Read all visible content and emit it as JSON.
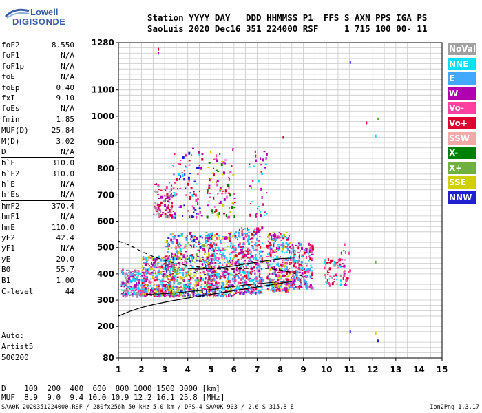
{
  "logo": {
    "line1": "Lowell",
    "line2": "DIGISONDE"
  },
  "header": {
    "labels": [
      "Station",
      "YYYY",
      "DAY",
      "DDD",
      "HHMMSS",
      "P1",
      "FFS",
      "S",
      "AXN",
      "PPS",
      "IGA",
      "PS"
    ],
    "line1": "Station YYYY DAY   DDD HHMMSS P1  FFS S AXN PPS IGA PS",
    "line2": "SaoLuis 2020 Dec16 351 224000 RSF     1 715 100 00- 11"
  },
  "params": [
    {
      "label": "foF2",
      "value": "8.550"
    },
    {
      "label": "foF1",
      "value": "N/A"
    },
    {
      "label": "foF1p",
      "value": "N/A"
    },
    {
      "label": "foE",
      "value": "N/A"
    },
    {
      "label": "foEp",
      "value": "0.40"
    },
    {
      "label": "fxI",
      "value": "9.10"
    },
    {
      "label": "foEs",
      "value": "N/A"
    },
    {
      "label": "fmin",
      "value": "1.85"
    },
    {
      "label": "MUF(D)",
      "value": "25.84"
    },
    {
      "label": "M(D)",
      "value": "3.02"
    },
    {
      "label": "D",
      "value": "N/A"
    },
    {
      "label": "h`F",
      "value": "310.0"
    },
    {
      "label": "h`F2",
      "value": "310.0"
    },
    {
      "label": "h`E",
      "value": "N/A"
    },
    {
      "label": "h`Es",
      "value": "N/A"
    },
    {
      "label": "hmF2",
      "value": "370.4"
    },
    {
      "label": "hmF1",
      "value": "N/A"
    },
    {
      "label": "hmE",
      "value": "110.0"
    },
    {
      "label": "yF2",
      "value": "42.4"
    },
    {
      "label": "yF1",
      "value": "N/A"
    },
    {
      "label": "yE",
      "value": "20.0"
    },
    {
      "label": "B0",
      "value": "55.7"
    },
    {
      "label": "B1",
      "value": "1.00"
    },
    {
      "label": "C-level",
      "value": "44"
    }
  ],
  "auto": {
    "line1": "Auto:",
    "line2": "Artist5",
    "line3": "500200"
  },
  "legend": [
    {
      "label": "NoVal",
      "color": "#a0a0a0"
    },
    {
      "label": "NNE",
      "color": "#00e0ff"
    },
    {
      "label": "E",
      "color": "#40a8ff"
    },
    {
      "label": "W",
      "color": "#b000b0"
    },
    {
      "label": "Vo-",
      "color": "#ff40a0"
    },
    {
      "label": "Vo+",
      "color": "#e00030"
    },
    {
      "label": "SSW",
      "color": "#f4a8a8"
    },
    {
      "label": "X-",
      "color": "#008000"
    },
    {
      "label": "X+",
      "color": "#70b040"
    },
    {
      "label": "SSE",
      "color": "#d0d000"
    },
    {
      "label": "NNW",
      "color": "#2020d0"
    }
  ],
  "bottom": {
    "d_line": "D    100  200  400  600  800 1000 1500 3000 [km]",
    "muf_line": "MUF  8.9  9.0  9.4 10.0 10.9 12.2 16.1 25.8 [MHz]"
  },
  "footer": "SAA0K_2020351224000.RSF / 280fx256h 50 kHz 5.0 km / DPS-4 SAA0K 903 / 2.6 S 315.8 E",
  "version": "Ion2Png 1.3.17",
  "chart_data": {
    "type": "scatter",
    "xlim": [
      1,
      15
    ],
    "ylim": [
      80,
      1280
    ],
    "x_ticks": [
      1,
      2,
      3,
      4,
      5,
      6,
      7,
      8,
      9,
      10,
      11,
      12,
      13,
      14,
      15
    ],
    "y_ticks": [
      80,
      200,
      300,
      400,
      500,
      600,
      700,
      800,
      900,
      1000,
      1100,
      1280
    ],
    "grid": true,
    "clusters": [
      {
        "x": [
          1.1,
          2.2
        ],
        "y": [
          320,
          420
        ],
        "n": 260,
        "colors": [
          "#40a8ff",
          "#00e0ff",
          "#b000b0",
          "#ff40a0",
          "#a0a0a0"
        ]
      },
      {
        "x": [
          2.0,
          3.4
        ],
        "y": [
          320,
          470
        ],
        "n": 340,
        "colors": [
          "#40a8ff",
          "#00e0ff",
          "#e00030",
          "#ff40a0",
          "#b000b0",
          "#d0d000"
        ]
      },
      {
        "x": [
          3.0,
          5.0
        ],
        "y": [
          320,
          560
        ],
        "n": 520,
        "colors": [
          "#d0d000",
          "#b000b0",
          "#2020d0",
          "#40a8ff",
          "#00e0ff",
          "#ff40a0",
          "#e00030",
          "#70b040"
        ]
      },
      {
        "x": [
          4.8,
          6.0
        ],
        "y": [
          320,
          560
        ],
        "n": 400,
        "colors": [
          "#e00030",
          "#ff40a0",
          "#40a8ff",
          "#00e0ff",
          "#b000b0",
          "#d0d000"
        ]
      },
      {
        "x": [
          6.0,
          7.2
        ],
        "y": [
          330,
          580
        ],
        "n": 380,
        "colors": [
          "#e00030",
          "#ff40a0",
          "#b000b0",
          "#40a8ff",
          "#00e0ff"
        ]
      },
      {
        "x": [
          7.4,
          8.4
        ],
        "y": [
          340,
          560
        ],
        "n": 330,
        "colors": [
          "#e00030",
          "#ff40a0",
          "#b000b0",
          "#40a8ff",
          "#00e0ff",
          "#d0d000"
        ]
      },
      {
        "x": [
          8.4,
          9.4
        ],
        "y": [
          350,
          520
        ],
        "n": 220,
        "colors": [
          "#ff40a0",
          "#e00030",
          "#b000b0",
          "#40a8ff",
          "#00e0ff"
        ]
      },
      {
        "x": [
          2.5,
          3.3
        ],
        "y": [
          620,
          750
        ],
        "n": 90,
        "colors": [
          "#b000b0",
          "#e00030",
          "#ff40a0",
          "#a0a0a0"
        ]
      },
      {
        "x": [
          3.3,
          4.6
        ],
        "y": [
          620,
          880
        ],
        "n": 90,
        "colors": [
          "#b000b0",
          "#ff40a0",
          "#e00030",
          "#00e0ff",
          "#2020d0"
        ]
      },
      {
        "x": [
          4.8,
          6.0
        ],
        "y": [
          620,
          890
        ],
        "n": 90,
        "colors": [
          "#d0d000",
          "#e00030",
          "#008000",
          "#b000b0",
          "#ff40a0"
        ]
      },
      {
        "x": [
          6.6,
          7.4
        ],
        "y": [
          620,
          880
        ],
        "n": 40,
        "colors": [
          "#b000b0",
          "#00e0ff",
          "#e00030"
        ]
      },
      {
        "x": [
          9.8,
          10.6
        ],
        "y": [
          360,
          460
        ],
        "n": 60,
        "colors": [
          "#e00030",
          "#ff40a0",
          "#a0a0a0",
          "#00e0ff"
        ]
      },
      {
        "x": [
          10.6,
          11.0
        ],
        "y": [
          360,
          520
        ],
        "n": 25,
        "colors": [
          "#ff40a0",
          "#e00030",
          "#b000b0"
        ]
      }
    ],
    "isolated_points": [
      {
        "x": 2.7,
        "y": 1260,
        "color": "#e00030"
      },
      {
        "x": 2.7,
        "y": 1245,
        "color": "#b000b0"
      },
      {
        "x": 11.0,
        "y": 1210,
        "color": "#2020d0"
      },
      {
        "x": 11.7,
        "y": 980,
        "color": "#e00030"
      },
      {
        "x": 12.2,
        "y": 995,
        "color": "#70b040"
      },
      {
        "x": 12.1,
        "y": 450,
        "color": "#70b040"
      },
      {
        "x": 12.1,
        "y": 180,
        "color": "#d0d000"
      },
      {
        "x": 12.2,
        "y": 150,
        "color": "#2020d0"
      },
      {
        "x": 11.0,
        "y": 185,
        "color": "#2020d0"
      },
      {
        "x": 8.1,
        "y": 925,
        "color": "#e00030"
      },
      {
        "x": 12.1,
        "y": 930,
        "color": "#00e0ff"
      }
    ],
    "profile_curve": {
      "x": [
        1.0,
        1.5,
        2.0,
        2.5,
        3.0,
        3.5,
        4.0,
        4.5,
        5.0,
        5.5,
        6.0,
        6.5,
        7.0,
        7.5,
        8.0,
        8.5
      ],
      "y": [
        240,
        258,
        272,
        283,
        292,
        300,
        308,
        315,
        322,
        329,
        336,
        343,
        350,
        357,
        364,
        372
      ]
    },
    "virtual_trace": {
      "x": [
        4.0,
        4.5,
        5.0,
        5.5,
        6.0,
        6.5,
        7.0,
        7.5,
        8.0,
        8.5
      ],
      "y": [
        420,
        418,
        420,
        424,
        430,
        438,
        445,
        452,
        458,
        460
      ]
    },
    "dashed_trace": {
      "x": [
        1.0,
        1.5,
        2.0,
        2.5,
        3.0,
        3.5,
        4.0,
        4.5,
        5.0,
        5.5,
        6.0,
        6.5,
        7.0,
        7.5,
        8.0,
        8.5,
        9.0
      ],
      "y": [
        525,
        508,
        485,
        466,
        452,
        440,
        432,
        426,
        420,
        418,
        418,
        420,
        422,
        420,
        415,
        405,
        390
      ]
    },
    "lower_trace": {
      "x": [
        2.2,
        3.0,
        3.5,
        4.0,
        4.5,
        5.0,
        5.5,
        6.0,
        6.5,
        7.0,
        7.5,
        8.0,
        8.5
      ],
      "y": [
        322,
        325,
        328,
        332,
        336,
        340,
        346,
        352,
        358,
        362,
        366,
        370,
        372
      ]
    }
  }
}
